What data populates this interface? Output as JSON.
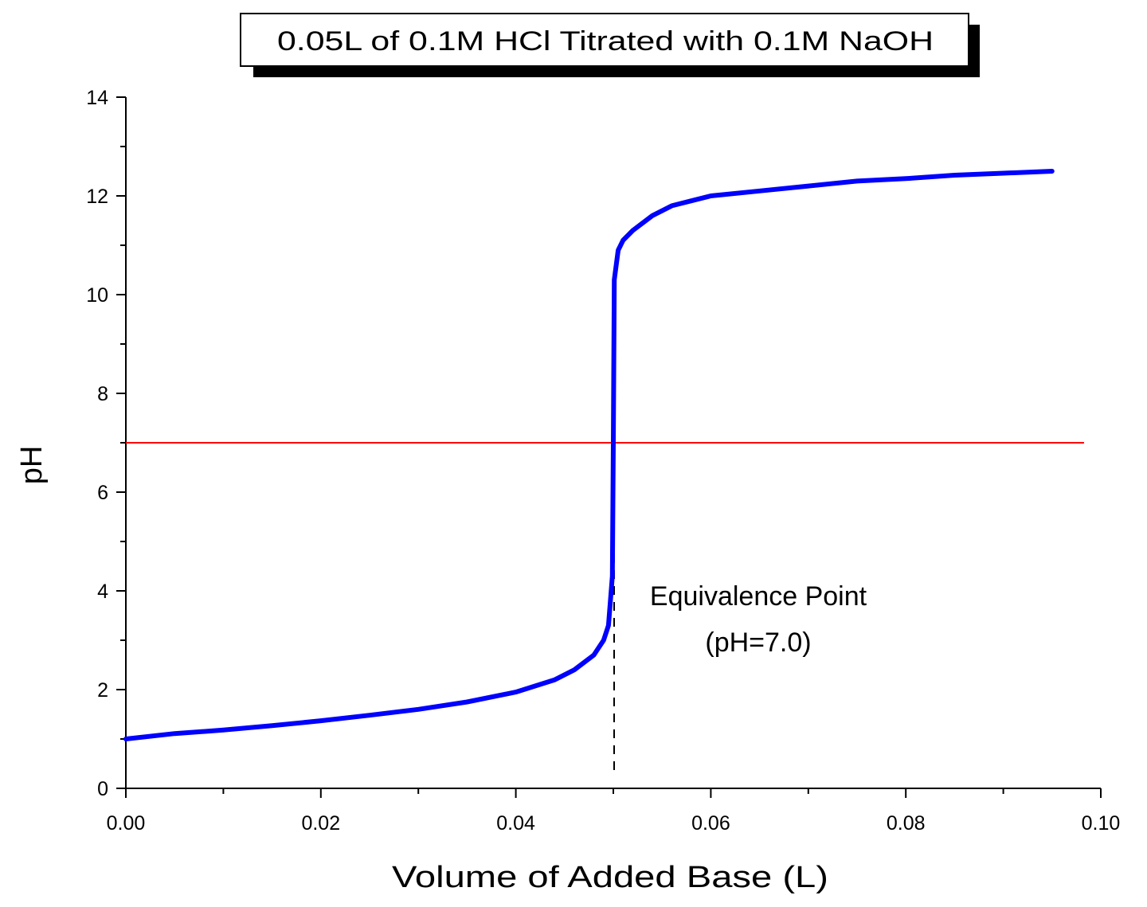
{
  "chart_data": {
    "type": "line",
    "title": "0.05L of 0.1M HCl Titrated with 0.1M NaOH",
    "xlabel": "Volume of Added Base (L)",
    "ylabel": "pH",
    "xlim": [
      0,
      0.1
    ],
    "ylim": [
      0,
      14
    ],
    "x_ticks": [
      "0.00",
      "0.02",
      "0.04",
      "0.06",
      "0.08",
      "0.10"
    ],
    "y_ticks": [
      "0",
      "2",
      "4",
      "6",
      "8",
      "10",
      "12",
      "14"
    ],
    "grid": false,
    "series": [
      {
        "color": "#0000ff",
        "x": [
          0.0,
          0.005,
          0.01,
          0.015,
          0.02,
          0.025,
          0.03,
          0.035,
          0.04,
          0.044,
          0.046,
          0.048,
          0.049,
          0.0495,
          0.0499,
          0.05,
          0.0501,
          0.0505,
          0.051,
          0.052,
          0.054,
          0.056,
          0.058,
          0.06,
          0.065,
          0.07,
          0.075,
          0.08,
          0.085,
          0.09,
          0.095
        ],
        "y": [
          1.0,
          1.11,
          1.18,
          1.27,
          1.37,
          1.48,
          1.6,
          1.75,
          1.95,
          2.2,
          2.4,
          2.7,
          3.0,
          3.3,
          4.3,
          7.0,
          10.3,
          10.9,
          11.1,
          11.3,
          11.6,
          11.8,
          11.9,
          12.0,
          12.1,
          12.2,
          12.3,
          12.35,
          12.42,
          12.46,
          12.5
        ]
      }
    ],
    "reference_lines": [
      {
        "orientation": "horizontal",
        "y": 7.0,
        "color": "#ff0000",
        "style": "solid"
      },
      {
        "orientation": "vertical",
        "x": 0.05,
        "color": "#000000",
        "style": "dashed"
      }
    ],
    "annotations": [
      {
        "lines": [
          "Equivalence Point",
          "(pH=7.0)"
        ]
      }
    ]
  }
}
